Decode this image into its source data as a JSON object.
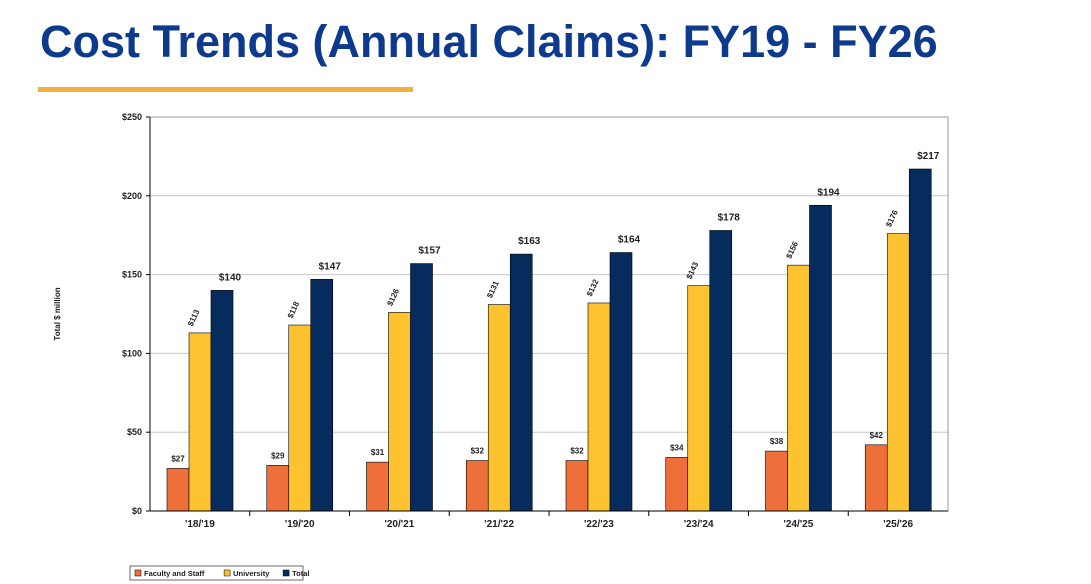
{
  "slide": {
    "title": "Cost Trends (Annual Claims): FY19 - FY26"
  },
  "colors": {
    "title": "#0d3a8c",
    "underline": "#f4b03c",
    "faculty": "#ee6f3a",
    "university": "#fdc22f",
    "total": "#052c5c",
    "grid": "#c8c8c8"
  },
  "chart_data": {
    "type": "bar",
    "title": "",
    "ylabel": "Total $ million",
    "xlabel": "",
    "ylim": [
      0,
      250
    ],
    "yticks": [
      0,
      50,
      100,
      150,
      200,
      250
    ],
    "ytick_labels": [
      "$0",
      "$50",
      "$100",
      "$150",
      "$200",
      "$250"
    ],
    "grid": true,
    "legend": "bottom-left",
    "categories": [
      "'18/'19",
      "'19/'20",
      "'20/'21",
      "'21/'22",
      "'22/'23",
      "'23/'24",
      "'24/'25",
      "'25/'26"
    ],
    "series": [
      {
        "name": "Faculty and Staff",
        "values": [
          27,
          29,
          31,
          32,
          32,
          34,
          38,
          42
        ],
        "labels": [
          "$27",
          "$29",
          "$31",
          "$32",
          "$32",
          "$34",
          "$38",
          "$42"
        ]
      },
      {
        "name": "University",
        "values": [
          113,
          118,
          126,
          131,
          132,
          143,
          156,
          176
        ],
        "labels": [
          "$113",
          "$118",
          "$126",
          "$131",
          "$132",
          "$143",
          "$156",
          "$176"
        ]
      },
      {
        "name": "Total",
        "values": [
          140,
          147,
          157,
          163,
          164,
          178,
          194,
          217
        ],
        "labels": [
          "$140",
          "$147",
          "$157",
          "$163",
          "$164",
          "$178",
          "$194",
          "$217"
        ]
      }
    ]
  }
}
